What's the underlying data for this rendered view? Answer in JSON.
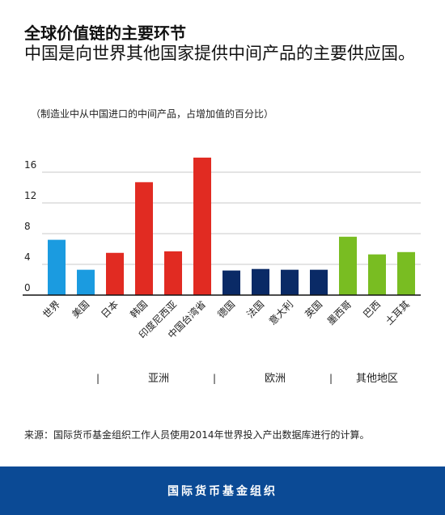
{
  "header": {
    "title": "全球价值链的主要环节",
    "subtitle": "中国是向世界其他国家提供中间产品的主要供应国。",
    "unit_note": "（制造业中从中国进口的中间产品，占增加值的百分比）"
  },
  "chart_data": {
    "type": "bar",
    "title": "",
    "xlabel": "",
    "ylabel": "",
    "ylim": [
      0,
      18
    ],
    "yticks": [
      0,
      4,
      8,
      12,
      16
    ],
    "grid": true,
    "categories": [
      "世界",
      "美国",
      "日本",
      "韩国",
      "印度尼西亚",
      "中国台湾省",
      "德国",
      "法国",
      "意大利",
      "英国",
      "墨西哥",
      "巴西",
      "土耳其"
    ],
    "values": [
      7.2,
      3.3,
      5.5,
      14.7,
      5.7,
      17.9,
      3.2,
      3.4,
      3.3,
      3.3,
      7.6,
      5.3,
      5.6
    ],
    "bar_colors": [
      "#1b9be0",
      "#1b9be0",
      "#e12b22",
      "#e12b22",
      "#e12b22",
      "#e12b22",
      "#0a2a66",
      "#0a2a66",
      "#0a2a66",
      "#0a2a66",
      "#79bd22",
      "#79bd22",
      "#79bd22"
    ],
    "groups": [
      {
        "label": "亚洲",
        "start": 2,
        "end": 5
      },
      {
        "label": "欧洲",
        "start": 6,
        "end": 9
      },
      {
        "label": "其他地区",
        "start": 10,
        "end": 12
      }
    ],
    "group_separator": "|"
  },
  "source": "来源：国际货币基金组织工作人员使用2014年世界投入产出数据库进行的计算。",
  "footer": {
    "org": "国际货币基金组织",
    "background": "#0b4a95"
  }
}
